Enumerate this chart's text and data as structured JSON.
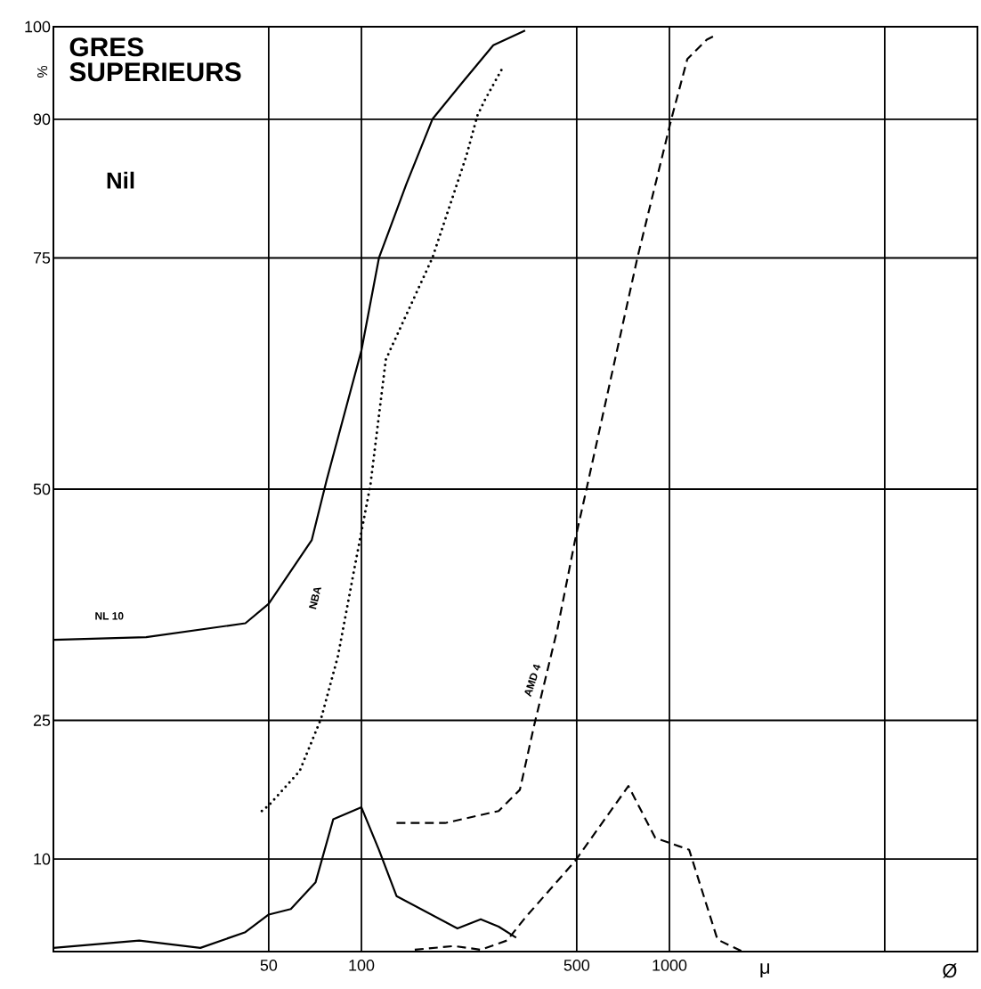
{
  "chart_data": {
    "type": "line",
    "title": "GRES SUPERIEURS",
    "subtitle": "Nil",
    "ylabel": "%",
    "xlabel": "μ",
    "annotations": [
      "Ø"
    ],
    "log": "x",
    "grid": true,
    "marker": "none",
    "xlim": [
      10,
      10000
    ],
    "xticks": [
      50,
      100,
      500,
      1000,
      {
        "value": 5000,
        "label": null
      }
    ],
    "ylim": [
      0,
      100
    ],
    "yticks": [
      10,
      25,
      50,
      75,
      90,
      100
    ],
    "series": [
      {
        "name": "NL 10",
        "color": "#000000",
        "line_style": "solid",
        "x": [
          10,
          20,
          42,
          50,
          69,
          77,
          100,
          114,
          140,
          170,
          213,
          268,
          340
        ],
        "values": [
          33.7,
          34,
          35.5,
          37.6,
          44.5,
          50.9,
          65,
          75,
          83,
          90,
          94,
          98,
          99.6
        ]
      },
      {
        "name": "NBA",
        "color": "#000000",
        "line_style": "dotted",
        "x": [
          47.5,
          50,
          63,
          74,
          84,
          94,
          107,
          120,
          170,
          219,
          238,
          251,
          290
        ],
        "values": [
          15.2,
          15.8,
          19.5,
          25.2,
          32,
          40.7,
          50.5,
          64,
          75,
          86,
          90.4,
          92,
          95.8
        ]
      },
      {
        "name": "AMD 4",
        "color": "#000000",
        "line_style": "dashed",
        "x": [
          130,
          187,
          279,
          327,
          364,
          433,
          494,
          542,
          787,
          1014,
          1143,
          1322,
          1432
        ],
        "values": [
          13.9,
          13.9,
          15.2,
          17.5,
          24.5,
          34.9,
          44.5,
          50.5,
          75,
          90,
          96.5,
          98.6,
          99.2
        ]
      },
      {
        "color": "#000000",
        "line_style": "solid",
        "x": [
          10,
          19,
          30,
          42,
          50,
          59,
          71,
          81,
          100,
          114,
          130,
          205,
          244,
          279,
          318
        ],
        "values": [
          0.4,
          1.2,
          0.4,
          2.1,
          4,
          4.6,
          7.5,
          14.3,
          15.6,
          11,
          6,
          2.5,
          3.5,
          2.7,
          1.5
        ]
      },
      {
        "color": "#000000",
        "line_style": "dashed",
        "x": [
          149,
          200,
          244,
          297,
          341,
          494,
          736,
          899,
          1159,
          1432,
          1726,
          2135
        ],
        "values": [
          0.2,
          0.6,
          0.2,
          1.2,
          3.7,
          9.8,
          17.9,
          12.3,
          11,
          1.3,
          0,
          0
        ]
      }
    ]
  }
}
